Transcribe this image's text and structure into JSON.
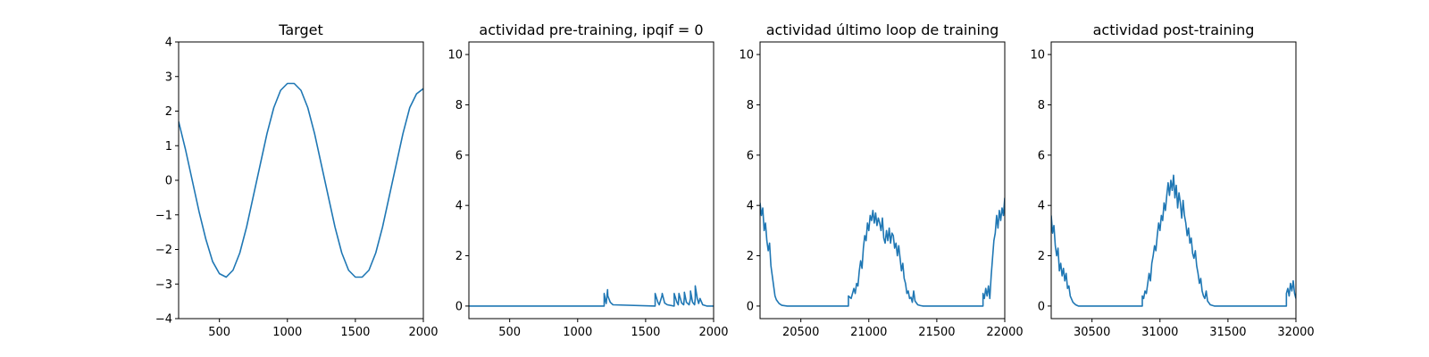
{
  "chart_data": [
    {
      "type": "line",
      "title": "Target",
      "xlim": [
        200,
        2000
      ],
      "ylim": [
        -4,
        4
      ],
      "xticks": [
        500,
        1000,
        1500,
        2000
      ],
      "yticks": [
        -4,
        -3,
        -2,
        -1,
        0,
        1,
        2,
        3,
        4
      ],
      "xtick_labels": [
        "500",
        "1000",
        "1500",
        "2000"
      ],
      "ytick_labels": [
        "−4",
        "−3",
        "−2",
        "−1",
        "0",
        "1",
        "2",
        "3",
        "4"
      ],
      "series": [
        {
          "color": "#1f77b4",
          "x": [
            200,
            250,
            300,
            350,
            400,
            450,
            500,
            550,
            600,
            650,
            700,
            750,
            800,
            850,
            900,
            950,
            1000,
            1050,
            1100,
            1150,
            1200,
            1250,
            1300,
            1350,
            1400,
            1450,
            1500,
            1550,
            1600,
            1650,
            1700,
            1750,
            1800,
            1850,
            1900,
            1950,
            2000
          ],
          "y": [
            1.7,
            0.9,
            0.0,
            -0.9,
            -1.7,
            -2.35,
            -2.7,
            -2.8,
            -2.6,
            -2.1,
            -1.35,
            -0.45,
            0.45,
            1.35,
            2.1,
            2.6,
            2.8,
            2.8,
            2.6,
            2.1,
            1.35,
            0.45,
            -0.45,
            -1.35,
            -2.1,
            -2.6,
            -2.8,
            -2.8,
            -2.6,
            -2.1,
            -1.35,
            -0.45,
            0.45,
            1.35,
            2.1,
            2.5,
            2.65
          ]
        }
      ]
    },
    {
      "type": "line",
      "title": "actividad pre-training, ipqif = 0",
      "xlim": [
        200,
        2000
      ],
      "ylim": [
        -0.5,
        10.5
      ],
      "xticks": [
        500,
        1000,
        1500,
        2000
      ],
      "yticks": [
        0,
        2,
        4,
        6,
        8,
        10
      ],
      "xtick_labels": [
        "500",
        "1000",
        "1500",
        "2000"
      ],
      "ytick_labels": [
        "0",
        "2",
        "4",
        "6",
        "8",
        "10"
      ],
      "series": [
        {
          "color": "#1f77b4",
          "x": [
            200,
            1000,
            1195,
            1195,
            1205,
            1210,
            1220,
            1222,
            1240,
            1260,
            1570,
            1570,
            1590,
            1600,
            1620,
            1622,
            1640,
            1660,
            1710,
            1710,
            1730,
            1740,
            1745,
            1745,
            1765,
            1780,
            1785,
            1785,
            1800,
            1820,
            1830,
            1830,
            1845,
            1860,
            1865,
            1865,
            1880,
            1890,
            1900,
            1920,
            1950,
            2000
          ],
          "y": [
            0,
            0,
            0,
            0.5,
            0.2,
            0.1,
            0.65,
            0.4,
            0.15,
            0.05,
            0,
            0.5,
            0.15,
            0.05,
            0.4,
            0.5,
            0.12,
            0.05,
            0,
            0.5,
            0.15,
            0.05,
            0.45,
            0.5,
            0.12,
            0.05,
            0.35,
            0.55,
            0.15,
            0.05,
            0.3,
            0.6,
            0.15,
            0.05,
            0.3,
            0.8,
            0.3,
            0.1,
            0.3,
            0.05,
            0.0,
            0.0
          ]
        }
      ]
    },
    {
      "type": "line",
      "title": "actividad último loop de training",
      "xlim": [
        20200,
        22000
      ],
      "ylim": [
        -0.5,
        10.5
      ],
      "xticks": [
        20500,
        21000,
        21500,
        22000
      ],
      "yticks": [
        0,
        2,
        4,
        6,
        8,
        10
      ],
      "xtick_labels": [
        "20500",
        "21000",
        "21500",
        "22000"
      ],
      "ytick_labels": [
        "0",
        "2",
        "4",
        "6",
        "8",
        "10"
      ],
      "series": [
        {
          "color": "#1f77b4",
          "x": [
            20200,
            20210,
            20220,
            20230,
            20240,
            20250,
            20260,
            20270,
            20280,
            20290,
            20300,
            20310,
            20320,
            20340,
            20360,
            20400,
            20600,
            20850,
            20850,
            20870,
            20890,
            20900,
            20910,
            20920,
            20930,
            20940,
            20950,
            20960,
            20970,
            20980,
            20990,
            21000,
            21010,
            21020,
            21030,
            21040,
            21050,
            21060,
            21070,
            21080,
            21090,
            21100,
            21110,
            21120,
            21130,
            21140,
            21150,
            21160,
            21170,
            21180,
            21190,
            21200,
            21210,
            21220,
            21230,
            21240,
            21250,
            21260,
            21270,
            21280,
            21290,
            21300,
            21310,
            21320,
            21330,
            21340,
            21360,
            21380,
            21400,
            21600,
            21840,
            21840,
            21850,
            21860,
            21870,
            21880,
            21890,
            21900,
            21910,
            21920,
            21930,
            21940,
            21950,
            21960,
            21970,
            21980,
            21990,
            22000
          ],
          "y": [
            4.1,
            3.6,
            3.9,
            3.0,
            3.3,
            2.6,
            2.2,
            2.5,
            1.6,
            1.2,
            0.8,
            0.4,
            0.25,
            0.1,
            0.03,
            0,
            0,
            0,
            0.4,
            0.3,
            0.7,
            0.5,
            0.9,
            0.8,
            1.4,
            1.8,
            1.5,
            2.3,
            2.8,
            2.6,
            3.3,
            3.0,
            3.6,
            3.4,
            3.8,
            3.3,
            3.7,
            3.2,
            3.5,
            3.3,
            3.0,
            3.5,
            2.7,
            2.5,
            3.0,
            2.6,
            3.1,
            2.5,
            2.9,
            2.8,
            2.3,
            2.5,
            2.0,
            2.4,
            1.9,
            1.4,
            1.7,
            1.1,
            0.9,
            0.5,
            0.6,
            0.3,
            0.35,
            0.15,
            0.6,
            0.2,
            0.05,
            0.02,
            0,
            0,
            0,
            0.5,
            0.3,
            0.7,
            0.4,
            0.8,
            0.3,
            1.2,
            1.9,
            2.6,
            2.9,
            3.6,
            3.1,
            3.8,
            3.4,
            3.9,
            3.6,
            4.3
          ]
        }
      ]
    },
    {
      "type": "line",
      "title": "actividad post-training",
      "xlim": [
        30200,
        32000
      ],
      "ylim": [
        -0.5,
        10.5
      ],
      "xticks": [
        30500,
        31000,
        31500,
        32000
      ],
      "yticks": [
        0,
        2,
        4,
        6,
        8,
        10
      ],
      "xtick_labels": [
        "30500",
        "31000",
        "31500",
        "32000"
      ],
      "ytick_labels": [
        "0",
        "2",
        "4",
        "6",
        "8",
        "10"
      ],
      "series": [
        {
          "color": "#1f77b4",
          "x": [
            30200,
            30210,
            30220,
            30230,
            30240,
            30250,
            30260,
            30270,
            30280,
            30290,
            30300,
            30310,
            30320,
            30330,
            30340,
            30360,
            30380,
            30400,
            30600,
            30870,
            30870,
            30880,
            30890,
            30900,
            30910,
            30920,
            30930,
            30940,
            30950,
            30960,
            30970,
            30980,
            30990,
            31000,
            31010,
            31020,
            31030,
            31040,
            31050,
            31060,
            31070,
            31080,
            31090,
            31100,
            31110,
            31120,
            31130,
            31140,
            31150,
            31160,
            31170,
            31180,
            31190,
            31200,
            31210,
            31220,
            31230,
            31240,
            31250,
            31260,
            31270,
            31280,
            31290,
            31300,
            31310,
            31320,
            31330,
            31340,
            31350,
            31370,
            31400,
            31600,
            31930,
            31930,
            31940,
            31950,
            31960,
            31970,
            31980,
            31990,
            32000
          ],
          "y": [
            3.6,
            2.9,
            3.2,
            2.4,
            2.0,
            2.3,
            1.4,
            1.7,
            1.2,
            1.5,
            1.0,
            1.3,
            0.7,
            0.8,
            0.4,
            0.15,
            0.05,
            0,
            0,
            0,
            0.4,
            0.3,
            0.6,
            0.5,
            0.9,
            1.3,
            1.0,
            1.7,
            2.0,
            2.4,
            2.2,
            2.8,
            3.3,
            3.0,
            3.6,
            3.4,
            4.1,
            3.8,
            4.4,
            4.9,
            4.4,
            5.0,
            4.6,
            5.2,
            4.3,
            4.8,
            3.9,
            4.5,
            4.1,
            3.5,
            4.2,
            3.6,
            3.3,
            2.8,
            3.1,
            2.5,
            2.7,
            2.1,
            1.9,
            2.2,
            1.6,
            1.3,
            0.9,
            1.1,
            0.6,
            0.4,
            0.3,
            0.6,
            0.2,
            0.05,
            0,
            0,
            0,
            0.5,
            0.7,
            0.4,
            0.9,
            0.6,
            1.0,
            0.5,
            0.3
          ]
        }
      ]
    }
  ]
}
